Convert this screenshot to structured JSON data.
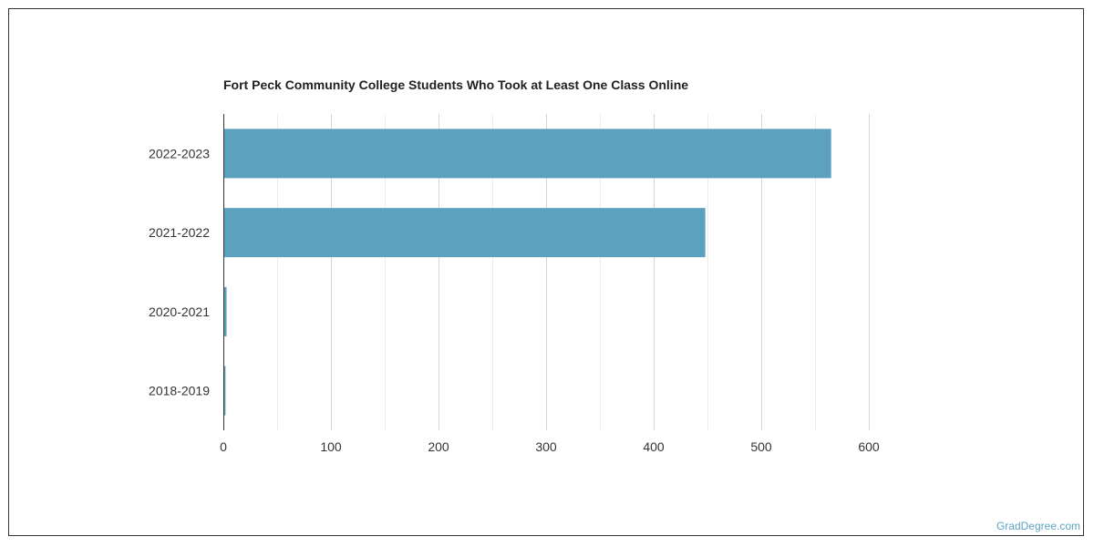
{
  "credit": "GradDegree.com",
  "chart_data": {
    "type": "bar",
    "orientation": "horizontal",
    "title": "Fort Peck Community College Students Who Took at Least One Class Online",
    "xlabel": "",
    "ylabel": "",
    "categories": [
      "2022-2023",
      "2021-2022",
      "2020-2021",
      "2018-2019"
    ],
    "values": [
      565,
      448,
      3,
      2
    ],
    "xlim": [
      0,
      600
    ],
    "xticks": [
      0,
      100,
      200,
      300,
      400,
      500,
      600
    ],
    "grid": true,
    "legend": "none",
    "bar_color": "#5ca2bf"
  }
}
